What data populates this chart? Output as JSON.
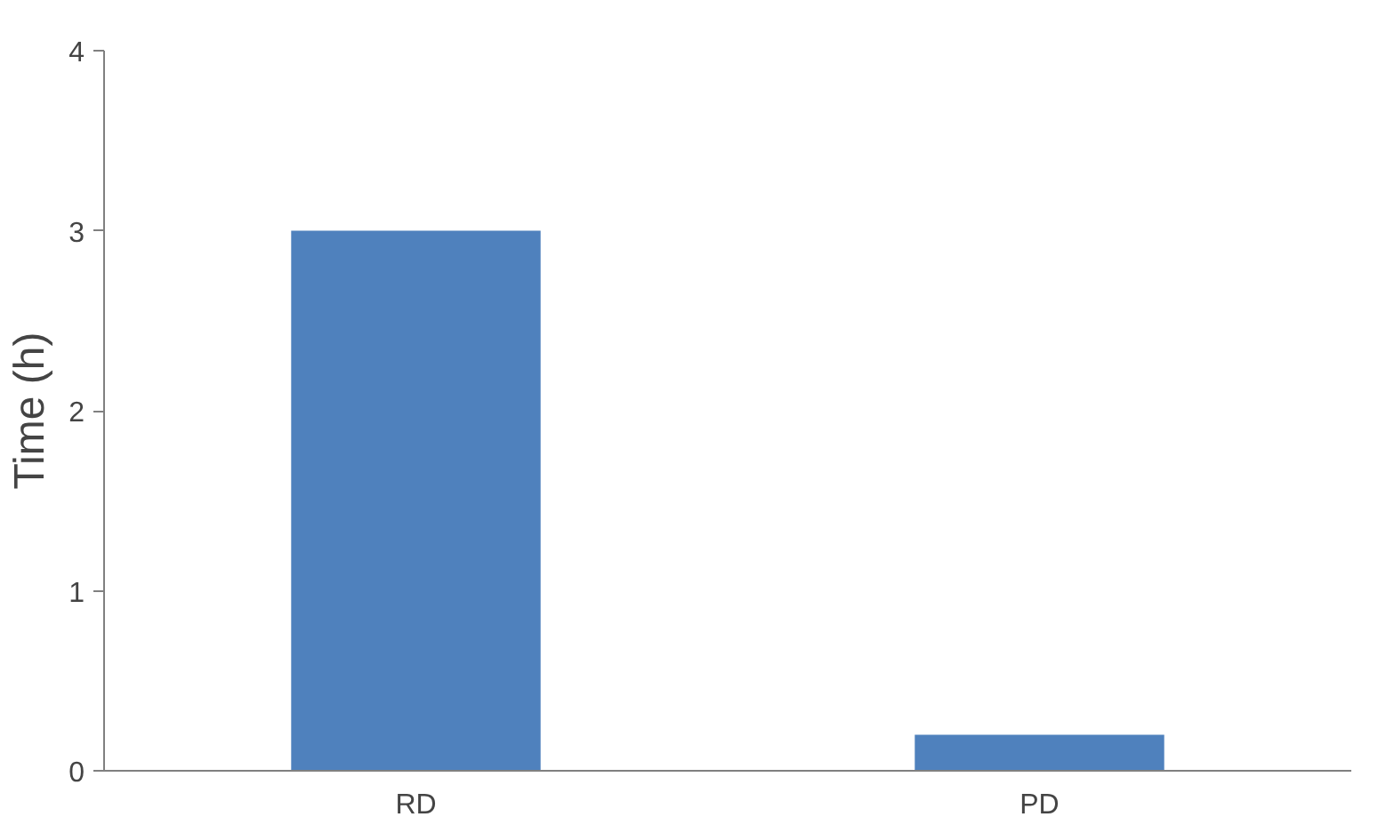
{
  "chart_data": {
    "type": "bar",
    "ylabel": "Time (h)",
    "categories": [
      "RD",
      "PD"
    ],
    "values": [
      3,
      0.2
    ],
    "color": "#4f81bd",
    "ylim": [
      0,
      4
    ],
    "yticks": [
      0,
      1,
      2,
      3,
      4
    ],
    "grid": false
  }
}
